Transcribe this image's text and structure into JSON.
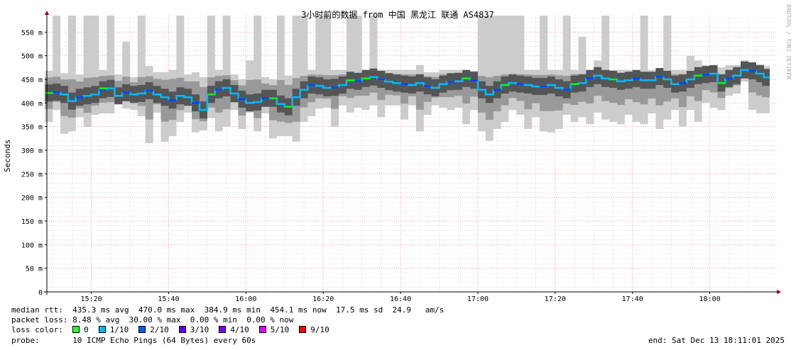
{
  "chart_data": {
    "type": "line",
    "title": "3小时前的数据 from 中国 黑龙江 联通 AS4837",
    "ylabel": "Seconds",
    "watermark": "RRDTOOL / TOBI OETIKER",
    "ylim": [
      0,
      0.585
    ],
    "y_ticks": [
      {
        "v": 0,
        "label": "0"
      },
      {
        "v": 0.05,
        "label": "50 m"
      },
      {
        "v": 0.1,
        "label": "100 m"
      },
      {
        "v": 0.15,
        "label": "150 m"
      },
      {
        "v": 0.2,
        "label": "200 m"
      },
      {
        "v": 0.25,
        "label": "250 m"
      },
      {
        "v": 0.3,
        "label": "300 m"
      },
      {
        "v": 0.35,
        "label": "350 m"
      },
      {
        "v": 0.4,
        "label": "400 m"
      },
      {
        "v": 0.45,
        "label": "450 m"
      },
      {
        "v": 0.5,
        "label": "500 m"
      },
      {
        "v": 0.55,
        "label": "550 m"
      }
    ],
    "x_ticks": [
      "15:20",
      "15:40",
      "16:00",
      "16:20",
      "16:40",
      "17:00",
      "17:20",
      "17:40",
      "18:00"
    ],
    "x_tick_minutes": [
      560,
      580,
      600,
      620,
      640,
      660,
      680,
      700,
      720
    ],
    "x_range_minutes": [
      548.5,
      731
    ],
    "grid": true,
    "median_series": [
      [
        549,
        0.421
      ],
      [
        551,
        0.423
      ],
      [
        553,
        0.418
      ],
      [
        555,
        0.404
      ],
      [
        557,
        0.412
      ],
      [
        559,
        0.415
      ],
      [
        561,
        0.418
      ],
      [
        563,
        0.428
      ],
      [
        565,
        0.431
      ],
      [
        567,
        0.415
      ],
      [
        569,
        0.422
      ],
      [
        571,
        0.418
      ],
      [
        573,
        0.42
      ],
      [
        575,
        0.426
      ],
      [
        577,
        0.418
      ],
      [
        579,
        0.412
      ],
      [
        581,
        0.406
      ],
      [
        583,
        0.415
      ],
      [
        585,
        0.412
      ],
      [
        587,
        0.4
      ],
      [
        589,
        0.385
      ],
      [
        591,
        0.418
      ],
      [
        593,
        0.428
      ],
      [
        595,
        0.432
      ],
      [
        597,
        0.42
      ],
      [
        599,
        0.408
      ],
      [
        601,
        0.4
      ],
      [
        603,
        0.402
      ],
      [
        605,
        0.41
      ],
      [
        607,
        0.41
      ],
      [
        609,
        0.398
      ],
      [
        611,
        0.392
      ],
      [
        613,
        0.412
      ],
      [
        615,
        0.428
      ],
      [
        617,
        0.438
      ],
      [
        619,
        0.436
      ],
      [
        621,
        0.432
      ],
      [
        623,
        0.433
      ],
      [
        625,
        0.438
      ],
      [
        627,
        0.448
      ],
      [
        629,
        0.446
      ],
      [
        631,
        0.452
      ],
      [
        633,
        0.455
      ],
      [
        635,
        0.45
      ],
      [
        637,
        0.445
      ],
      [
        639,
        0.442
      ],
      [
        641,
        0.44
      ],
      [
        643,
        0.438
      ],
      [
        645,
        0.442
      ],
      [
        647,
        0.436
      ],
      [
        649,
        0.432
      ],
      [
        651,
        0.44
      ],
      [
        653,
        0.445
      ],
      [
        655,
        0.446
      ],
      [
        657,
        0.452
      ],
      [
        659,
        0.448
      ],
      [
        661,
        0.428
      ],
      [
        663,
        0.418
      ],
      [
        665,
        0.428
      ],
      [
        667,
        0.438
      ],
      [
        669,
        0.442
      ],
      [
        671,
        0.44
      ],
      [
        673,
        0.438
      ],
      [
        675,
        0.435
      ],
      [
        677,
        0.435
      ],
      [
        679,
        0.438
      ],
      [
        681,
        0.432
      ],
      [
        683,
        0.428
      ],
      [
        685,
        0.44
      ],
      [
        687,
        0.442
      ],
      [
        689,
        0.452
      ],
      [
        691,
        0.458
      ],
      [
        693,
        0.452
      ],
      [
        695,
        0.45
      ],
      [
        697,
        0.446
      ],
      [
        699,
        0.448
      ],
      [
        701,
        0.452
      ],
      [
        703,
        0.448
      ],
      [
        705,
        0.448
      ],
      [
        707,
        0.456
      ],
      [
        709,
        0.45
      ],
      [
        711,
        0.44
      ],
      [
        713,
        0.442
      ],
      [
        715,
        0.45
      ],
      [
        717,
        0.458
      ],
      [
        719,
        0.46
      ],
      [
        721,
        0.462
      ],
      [
        723,
        0.442
      ],
      [
        725,
        0.452
      ],
      [
        727,
        0.458
      ],
      [
        729,
        0.47
      ],
      [
        731,
        0.468
      ],
      [
        733,
        0.462
      ],
      [
        734.5,
        0.454
      ]
    ],
    "max_series": [
      [
        549,
        0.468
      ],
      [
        551,
        0.588
      ],
      [
        553,
        0.463
      ],
      [
        555,
        0.588
      ],
      [
        557,
        0.46
      ],
      [
        559,
        0.588
      ],
      [
        561,
        0.588
      ],
      [
        563,
        0.47
      ],
      [
        565,
        0.588
      ],
      [
        567,
        0.46
      ],
      [
        569,
        0.53
      ],
      [
        571,
        0.455
      ],
      [
        573,
        0.588
      ],
      [
        575,
        0.478
      ],
      [
        577,
        0.465
      ],
      [
        579,
        0.465
      ],
      [
        581,
        0.47
      ],
      [
        583,
        0.588
      ],
      [
        585,
        0.46
      ],
      [
        587,
        0.465
      ],
      [
        589,
        0.455
      ],
      [
        591,
        0.588
      ],
      [
        593,
        0.47
      ],
      [
        595,
        0.588
      ],
      [
        597,
        0.46
      ],
      [
        599,
        0.45
      ],
      [
        601,
        0.49
      ],
      [
        603,
        0.588
      ],
      [
        605,
        0.455
      ],
      [
        607,
        0.45
      ],
      [
        609,
        0.588
      ],
      [
        611,
        0.458
      ],
      [
        613,
        0.588
      ],
      [
        615,
        0.588
      ],
      [
        617,
        0.47
      ],
      [
        619,
        0.588
      ],
      [
        621,
        0.588
      ],
      [
        623,
        0.47
      ],
      [
        625,
        0.47
      ],
      [
        627,
        0.588
      ],
      [
        629,
        0.588
      ],
      [
        631,
        0.47
      ],
      [
        633,
        0.588
      ],
      [
        635,
        0.47
      ],
      [
        637,
        0.47
      ],
      [
        639,
        0.47
      ],
      [
        641,
        0.47
      ],
      [
        643,
        0.47
      ],
      [
        645,
        0.48
      ],
      [
        647,
        0.465
      ],
      [
        649,
        0.465
      ],
      [
        651,
        0.47
      ],
      [
        653,
        0.47
      ],
      [
        655,
        0.47
      ],
      [
        657,
        0.47
      ],
      [
        659,
        0.468
      ],
      [
        661,
        0.588
      ],
      [
        663,
        0.588
      ],
      [
        665,
        0.588
      ],
      [
        667,
        0.588
      ],
      [
        669,
        0.588
      ],
      [
        671,
        0.588
      ],
      [
        673,
        0.47
      ],
      [
        675,
        0.47
      ],
      [
        677,
        0.588
      ],
      [
        679,
        0.47
      ],
      [
        681,
        0.47
      ],
      [
        683,
        0.588
      ],
      [
        685,
        0.47
      ],
      [
        687,
        0.54
      ],
      [
        689,
        0.47
      ],
      [
        691,
        0.49
      ],
      [
        693,
        0.588
      ],
      [
        695,
        0.47
      ],
      [
        697,
        0.47
      ],
      [
        699,
        0.47
      ],
      [
        701,
        0.47
      ],
      [
        703,
        0.588
      ],
      [
        705,
        0.47
      ],
      [
        707,
        0.47
      ],
      [
        709,
        0.588
      ],
      [
        711,
        0.47
      ],
      [
        713,
        0.47
      ],
      [
        715,
        0.5
      ],
      [
        717,
        0.49
      ],
      [
        719,
        0.48
      ],
      [
        721,
        0.47
      ],
      [
        723,
        0.475
      ],
      [
        725,
        0.48
      ],
      [
        727,
        0.48
      ],
      [
        729,
        0.49
      ],
      [
        731,
        0.485
      ],
      [
        733,
        0.482
      ],
      [
        734.5,
        0.478
      ]
    ],
    "min_series": [
      [
        549,
        0.36
      ],
      [
        551,
        0.385
      ],
      [
        553,
        0.335
      ],
      [
        555,
        0.34
      ],
      [
        557,
        0.37
      ],
      [
        559,
        0.35
      ],
      [
        561,
        0.375
      ],
      [
        563,
        0.378
      ],
      [
        565,
        0.378
      ],
      [
        567,
        0.398
      ],
      [
        569,
        0.388
      ],
      [
        571,
        0.385
      ],
      [
        573,
        0.372
      ],
      [
        575,
        0.315
      ],
      [
        577,
        0.38
      ],
      [
        579,
        0.318
      ],
      [
        581,
        0.33
      ],
      [
        583,
        0.36
      ],
      [
        585,
        0.38
      ],
      [
        587,
        0.338
      ],
      [
        589,
        0.342
      ],
      [
        591,
        0.368
      ],
      [
        593,
        0.34
      ],
      [
        595,
        0.35
      ],
      [
        597,
        0.385
      ],
      [
        599,
        0.345
      ],
      [
        601,
        0.38
      ],
      [
        603,
        0.34
      ],
      [
        605,
        0.378
      ],
      [
        607,
        0.325
      ],
      [
        609,
        0.33
      ],
      [
        611,
        0.33
      ],
      [
        613,
        0.318
      ],
      [
        615,
        0.36
      ],
      [
        617,
        0.372
      ],
      [
        619,
        0.388
      ],
      [
        621,
        0.39
      ],
      [
        623,
        0.35
      ],
      [
        625,
        0.395
      ],
      [
        627,
        0.38
      ],
      [
        629,
        0.39
      ],
      [
        631,
        0.385
      ],
      [
        633,
        0.395
      ],
      [
        635,
        0.37
      ],
      [
        637,
        0.395
      ],
      [
        639,
        0.395
      ],
      [
        641,
        0.365
      ],
      [
        643,
        0.395
      ],
      [
        645,
        0.34
      ],
      [
        647,
        0.375
      ],
      [
        649,
        0.395
      ],
      [
        651,
        0.39
      ],
      [
        653,
        0.385
      ],
      [
        655,
        0.39
      ],
      [
        657,
        0.355
      ],
      [
        659,
        0.385
      ],
      [
        661,
        0.34
      ],
      [
        663,
        0.32
      ],
      [
        665,
        0.345
      ],
      [
        667,
        0.36
      ],
      [
        669,
        0.385
      ],
      [
        671,
        0.375
      ],
      [
        673,
        0.345
      ],
      [
        675,
        0.37
      ],
      [
        677,
        0.34
      ],
      [
        679,
        0.338
      ],
      [
        681,
        0.345
      ],
      [
        683,
        0.375
      ],
      [
        685,
        0.36
      ],
      [
        687,
        0.37
      ],
      [
        689,
        0.355
      ],
      [
        691,
        0.38
      ],
      [
        693,
        0.365
      ],
      [
        695,
        0.36
      ],
      [
        697,
        0.355
      ],
      [
        699,
        0.375
      ],
      [
        701,
        0.36
      ],
      [
        703,
        0.355
      ],
      [
        705,
        0.378
      ],
      [
        707,
        0.345
      ],
      [
        709,
        0.365
      ],
      [
        711,
        0.385
      ],
      [
        713,
        0.35
      ],
      [
        715,
        0.385
      ],
      [
        717,
        0.36
      ],
      [
        719,
        0.4
      ],
      [
        721,
        0.39
      ],
      [
        723,
        0.385
      ],
      [
        725,
        0.415
      ],
      [
        727,
        0.42
      ],
      [
        729,
        0.445
      ],
      [
        731,
        0.385
      ],
      [
        733,
        0.378
      ],
      [
        734.5,
        0.378
      ]
    ],
    "loss_points": [
      [
        549,
        0.421
      ],
      [
        563,
        0.431
      ],
      [
        591,
        0.418
      ],
      [
        607,
        0.41
      ],
      [
        611,
        0.392
      ],
      [
        627,
        0.448
      ],
      [
        631,
        0.452
      ],
      [
        657,
        0.452
      ],
      [
        667,
        0.438
      ],
      [
        685,
        0.44
      ],
      [
        695,
        0.45
      ],
      [
        717,
        0.458
      ],
      [
        723,
        0.442
      ]
    ],
    "colors": {
      "median": "#00bbff",
      "median_alt": "#0044ff",
      "loss0": "#00ff00",
      "smoke_light": "#cccccc",
      "smoke_mid": "#999999",
      "smoke_dark": "#555555",
      "grid_minor": "#dddddd",
      "grid_major": "#ff9999",
      "axis_arrow": "#990000"
    }
  },
  "stats": {
    "rtt_label": "median rtt:",
    "rtt_avg": "435.3 ms avg",
    "rtt_max": "470.0 ms max",
    "rtt_min": "384.9 ms min",
    "rtt_now": "454.1 ms now",
    "rtt_sd": "17.5 ms sd",
    "rtt_ams": "24.9   am/s",
    "loss_label": "packet loss:",
    "loss_avg": "8.48 % avg",
    "loss_max": "30.00 % max",
    "loss_min": "0.00 % min",
    "loss_now": "0.00 % now"
  },
  "loss_legend": {
    "label": "loss color:",
    "items": [
      {
        "label": "0",
        "color": "#33ff33"
      },
      {
        "label": "1/10",
        "color": "#00b8ff"
      },
      {
        "label": "2/10",
        "color": "#0059ff"
      },
      {
        "label": "3/10",
        "color": "#5e00ff"
      },
      {
        "label": "4/10",
        "color": "#7e00ff"
      },
      {
        "label": "5/10",
        "color": "#dd00ff"
      },
      {
        "label": "9/10",
        "color": "#ff0000"
      }
    ]
  },
  "probe": {
    "label": "probe:",
    "value": "10 ICMP Echo Pings (64 Bytes) every 60s",
    "end": "end: Sat Dec 13 18:11:01 2025"
  }
}
